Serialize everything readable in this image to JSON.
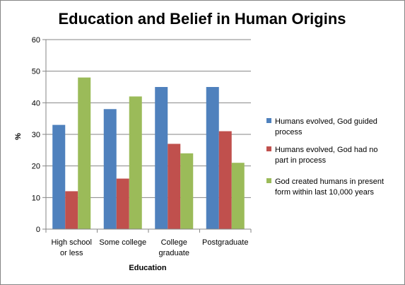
{
  "chart_data": {
    "type": "bar",
    "title": "Education and Belief in Human Origins",
    "xlabel": "Education",
    "ylabel": "%",
    "ylim": [
      0,
      60
    ],
    "yticks": [
      0,
      10,
      20,
      30,
      40,
      50,
      60
    ],
    "grid": true,
    "legend_position": "right",
    "categories": [
      [
        "High school",
        "or less"
      ],
      [
        "Some college"
      ],
      [
        "College",
        "graduate"
      ],
      [
        "Postgraduate"
      ]
    ],
    "series": [
      {
        "name": [
          "Humans evolved, God guided",
          "process"
        ],
        "color": "#4F81BD",
        "values": [
          33,
          38,
          45,
          45
        ]
      },
      {
        "name": [
          "Humans evolved, God had no",
          "part in process"
        ],
        "color": "#C0504D",
        "values": [
          12,
          16,
          27,
          31
        ]
      },
      {
        "name": [
          "God created humans in present",
          "form within last 10,000 years"
        ],
        "color": "#9BBB59",
        "values": [
          48,
          42,
          24,
          21
        ]
      }
    ],
    "colors": {
      "grid": "#868686",
      "axis": "#868686"
    }
  }
}
